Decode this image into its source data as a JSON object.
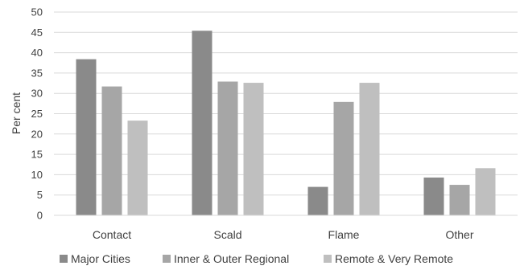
{
  "chart_data": {
    "type": "bar",
    "title": "",
    "xlabel": "",
    "ylabel": "Per cent",
    "ylim": [
      0,
      50
    ],
    "yticks": [
      0,
      5,
      10,
      15,
      20,
      25,
      30,
      35,
      40,
      45,
      50
    ],
    "grid": "horizontal",
    "legend_position": "bottom",
    "categories": [
      "Contact",
      "Scald",
      "Flame",
      "Other"
    ],
    "series": [
      {
        "name": "Major Cities",
        "color": "#8a8a8a",
        "values": [
          38.4,
          45.4,
          7.0,
          9.3
        ]
      },
      {
        "name": "Inner & Outer Regional",
        "color": "#a6a6a6",
        "values": [
          31.7,
          32.9,
          27.9,
          7.5
        ]
      },
      {
        "name": "Remote & Very Remote",
        "color": "#bfbfbf",
        "values": [
          23.3,
          32.6,
          32.6,
          11.6
        ]
      }
    ]
  }
}
